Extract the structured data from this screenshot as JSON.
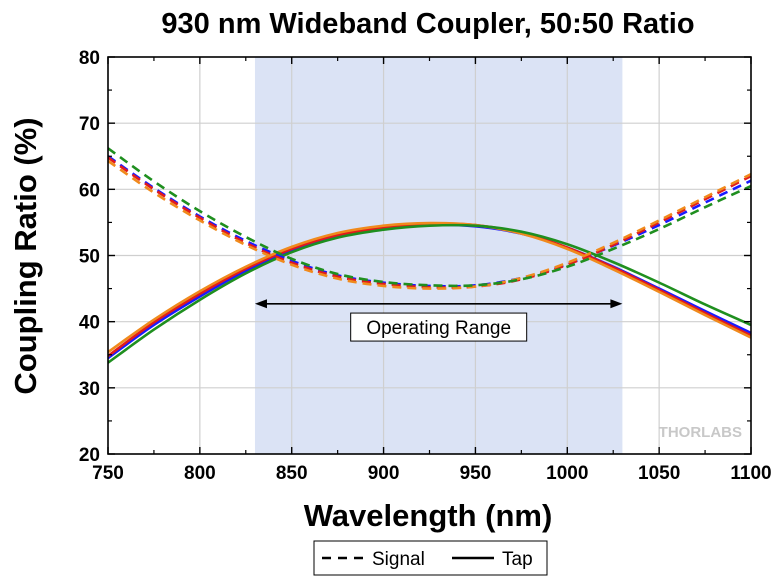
{
  "chart_data": {
    "type": "line",
    "title": "930 nm Wideband Coupler, 50:50 Ratio",
    "xlabel": "Wavelength (nm)",
    "ylabel": "Coupling Ratio (%)",
    "xlim": [
      750,
      1100
    ],
    "ylim": [
      20,
      80
    ],
    "xticks": [
      750,
      800,
      850,
      900,
      950,
      1000,
      1050,
      1100
    ],
    "yticks": [
      20,
      30,
      40,
      50,
      60,
      70,
      80
    ],
    "grid": true,
    "operating_range": {
      "x": [
        830,
        1030
      ],
      "label": "Operating Range",
      "fill": "#dbe3f5"
    },
    "legend": {
      "position": "bottom",
      "entries": [
        {
          "label": "Signal",
          "style": "dashed"
        },
        {
          "label": "Tap",
          "style": "solid"
        }
      ]
    },
    "watermark": "THORLABS",
    "x": [
      750,
      775,
      800,
      825,
      850,
      875,
      900,
      925,
      950,
      975,
      1000,
      1025,
      1050,
      1075,
      1100
    ],
    "series": [
      {
        "color": "#1a1aff",
        "style": "solid",
        "values": [
          34.5,
          39.5,
          43.8,
          47.7,
          50.8,
          52.9,
          54.0,
          54.6,
          54.4,
          53.3,
          51.2,
          48.3,
          45.0,
          41.6,
          38.3
        ]
      },
      {
        "color": "#1a1aff",
        "style": "dashed",
        "values": [
          65.0,
          60.2,
          55.9,
          52.2,
          49.2,
          47.0,
          45.9,
          45.4,
          45.5,
          46.6,
          48.7,
          51.5,
          54.6,
          58.0,
          61.3
        ]
      },
      {
        "color": "#e11b1b",
        "style": "solid",
        "values": [
          34.8,
          39.9,
          44.2,
          48.0,
          51.0,
          53.1,
          54.2,
          54.8,
          54.6,
          53.4,
          51.2,
          48.2,
          44.8,
          41.3,
          37.9
        ]
      },
      {
        "color": "#e11b1b",
        "style": "dashed",
        "values": [
          64.8,
          60.0,
          55.7,
          51.9,
          48.9,
          46.8,
          45.7,
          45.2,
          45.3,
          46.4,
          48.6,
          51.6,
          55.0,
          58.5,
          62.0
        ]
      },
      {
        "color": "#1f8f1f",
        "style": "solid",
        "values": [
          33.8,
          38.8,
          43.3,
          47.3,
          50.5,
          52.7,
          53.9,
          54.5,
          54.5,
          53.6,
          51.7,
          49.0,
          45.9,
          42.6,
          39.5
        ]
      },
      {
        "color": "#1f8f1f",
        "style": "dashed",
        "values": [
          66.2,
          61.2,
          56.7,
          52.8,
          49.5,
          47.2,
          46.0,
          45.5,
          45.5,
          46.4,
          48.3,
          51.0,
          54.0,
          57.3,
          60.5
        ]
      },
      {
        "color": "#f08a1c",
        "style": "solid",
        "values": [
          35.4,
          40.3,
          44.6,
          48.3,
          51.3,
          53.4,
          54.5,
          54.9,
          54.6,
          53.3,
          51.0,
          47.9,
          44.5,
          41.0,
          37.6
        ]
      },
      {
        "color": "#f08a1c",
        "style": "dashed",
        "values": [
          64.3,
          59.5,
          55.3,
          51.6,
          48.6,
          46.5,
          45.4,
          45.0,
          45.3,
          46.6,
          48.9,
          51.9,
          55.3,
          58.8,
          62.3
        ]
      }
    ]
  }
}
